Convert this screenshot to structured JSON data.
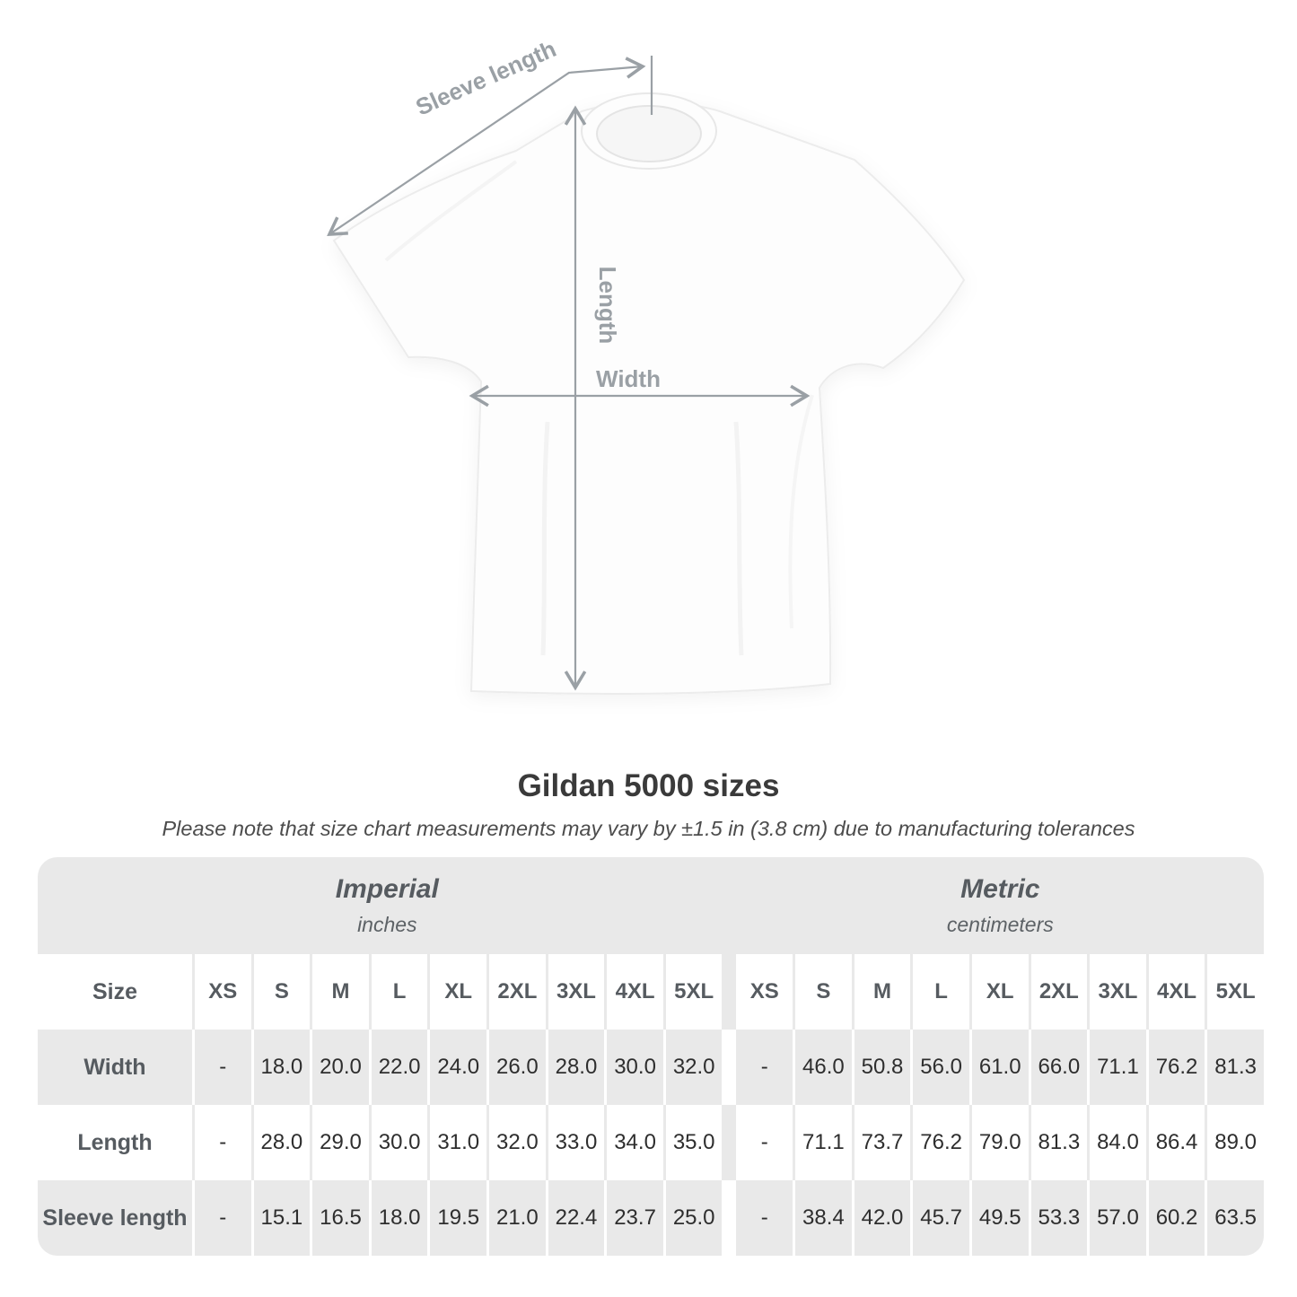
{
  "diagram": {
    "sleeve_length_label": "Sleeve length",
    "length_label": "Length",
    "width_label": "Width"
  },
  "title": "Gildan 5000 sizes",
  "subtitle": "Please note that size chart measurements may vary by ±1.5 in (3.8 cm) due to manufacturing tolerances",
  "table": {
    "groups": [
      {
        "label": "Imperial",
        "sublabel": "inches"
      },
      {
        "label": "Metric",
        "sublabel": "centimeters"
      }
    ],
    "size_header": "Size",
    "sizes": [
      "XS",
      "S",
      "M",
      "L",
      "XL",
      "2XL",
      "3XL",
      "4XL",
      "5XL"
    ],
    "rows": [
      {
        "label": "Width",
        "imperial": [
          "-",
          "18.0",
          "20.0",
          "22.0",
          "24.0",
          "26.0",
          "28.0",
          "30.0",
          "32.0"
        ],
        "metric": [
          "-",
          "46.0",
          "50.8",
          "56.0",
          "61.0",
          "66.0",
          "71.1",
          "76.2",
          "81.3"
        ]
      },
      {
        "label": "Length",
        "imperial": [
          "-",
          "28.0",
          "29.0",
          "30.0",
          "31.0",
          "32.0",
          "33.0",
          "34.0",
          "35.0"
        ],
        "metric": [
          "-",
          "71.1",
          "73.7",
          "76.2",
          "79.0",
          "81.3",
          "84.0",
          "86.4",
          "89.0"
        ]
      },
      {
        "label": "Sleeve length",
        "imperial": [
          "-",
          "15.1",
          "16.5",
          "18.0",
          "19.5",
          "21.0",
          "22.4",
          "23.7",
          "25.0"
        ],
        "metric": [
          "-",
          "38.4",
          "42.0",
          "45.7",
          "49.5",
          "53.3",
          "57.0",
          "60.2",
          "63.5"
        ]
      }
    ]
  },
  "colors": {
    "row_gray": "#e9e9e9",
    "value_text": "#2e2e2e",
    "header_text": "#565b60",
    "arrow": "#9aa0a5",
    "title_text": "#3a3a3a"
  },
  "chart_data": {
    "type": "table",
    "title": "Gildan 5000 sizes",
    "note": "Please note that size chart measurements may vary by ±1.5 in (3.8 cm) due to manufacturing tolerances",
    "column_groups": [
      "Imperial (inches)",
      "Metric (centimeters)"
    ],
    "columns": [
      "Size",
      "XS",
      "S",
      "M",
      "L",
      "XL",
      "2XL",
      "3XL",
      "4XL",
      "5XL",
      "XS",
      "S",
      "M",
      "L",
      "XL",
      "2XL",
      "3XL",
      "4XL",
      "5XL"
    ],
    "rows": [
      [
        "Width",
        "-",
        18.0,
        20.0,
        22.0,
        24.0,
        26.0,
        28.0,
        30.0,
        32.0,
        "-",
        46.0,
        50.8,
        56.0,
        61.0,
        66.0,
        71.1,
        76.2,
        81.3
      ],
      [
        "Length",
        "-",
        28.0,
        29.0,
        30.0,
        31.0,
        32.0,
        33.0,
        34.0,
        35.0,
        "-",
        71.1,
        73.7,
        76.2,
        79.0,
        81.3,
        84.0,
        86.4,
        89.0
      ],
      [
        "Sleeve length",
        "-",
        15.1,
        16.5,
        18.0,
        19.5,
        21.0,
        22.4,
        23.7,
        25.0,
        "-",
        38.4,
        42.0,
        45.7,
        49.5,
        53.3,
        57.0,
        60.2,
        63.5
      ]
    ]
  }
}
